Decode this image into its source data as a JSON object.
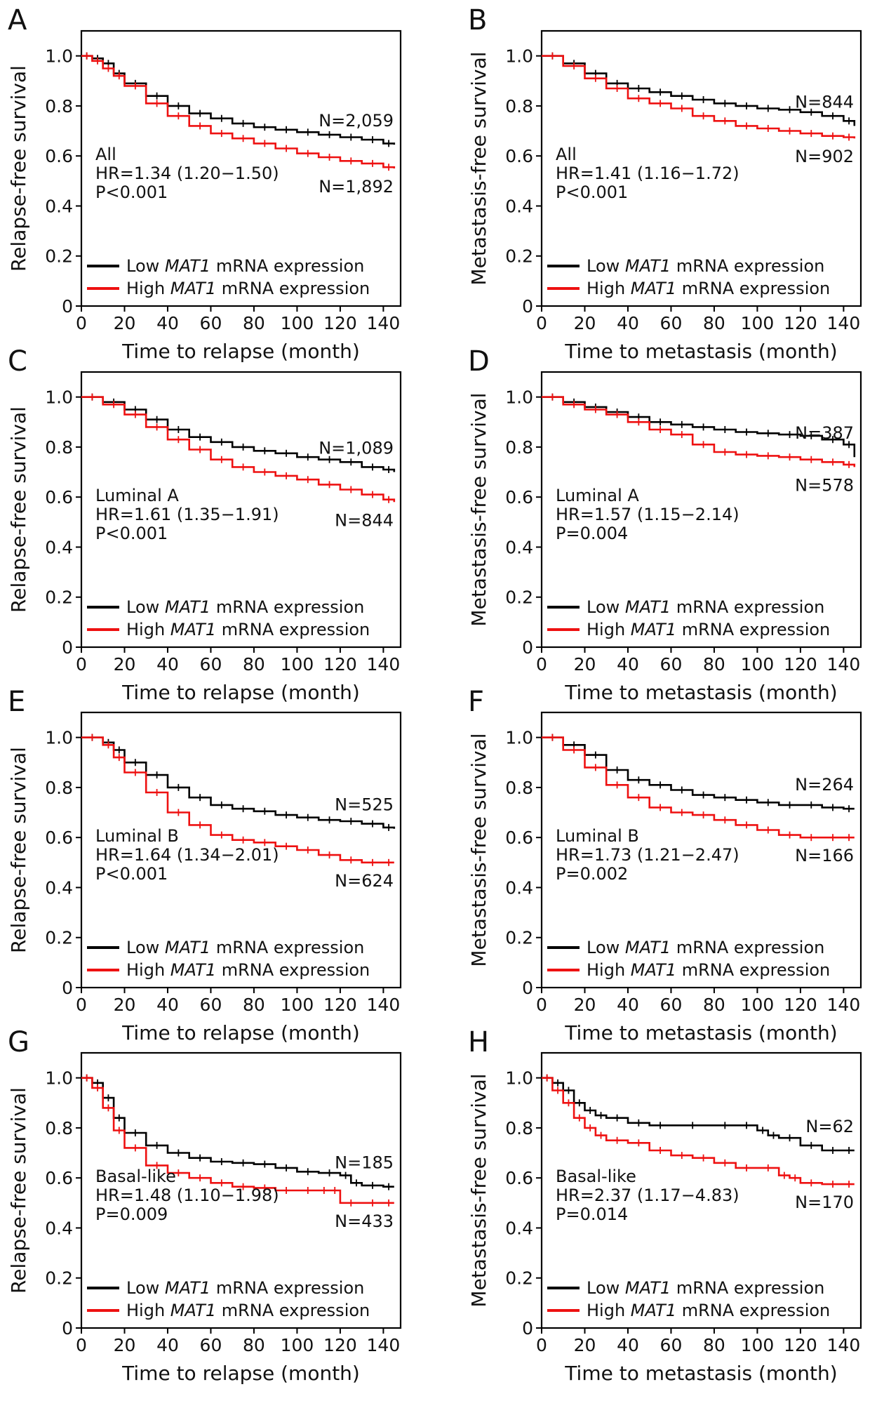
{
  "figure": {
    "colors": {
      "low": "#000000",
      "high": "#ee1111"
    },
    "legend_placement": "bottom-left",
    "grid": false
  },
  "chart_data": [
    {
      "panel": "A",
      "type": "line",
      "xlabel": "Time to relapse (month)",
      "ylabel": "Relapse-free survival",
      "xlim": [
        0,
        148
      ],
      "ylim": [
        0,
        1.1
      ],
      "xticks": [
        "0",
        "20",
        "40",
        "60",
        "80",
        "100",
        "120",
        "140"
      ],
      "yticks": [
        "0",
        "0.2",
        "0.4",
        "0.6",
        "0.8",
        "1.0"
      ],
      "subset": "All",
      "hr": "HR=1.34 (1.20−1.50)",
      "p": "P<0.001",
      "legend": {
        "low_pre": "Low ",
        "high_pre": "High ",
        "gene": "MAT1",
        "post": " mRNA expression"
      },
      "series": [
        {
          "name": "Low MAT1 mRNA expression",
          "color": "#000000",
          "n_label": "N=2,059",
          "x": [
            0,
            5,
            10,
            15,
            20,
            30,
            40,
            50,
            60,
            70,
            80,
            90,
            100,
            110,
            120,
            130,
            140,
            145
          ],
          "y": [
            1.0,
            0.99,
            0.97,
            0.93,
            0.89,
            0.84,
            0.8,
            0.77,
            0.75,
            0.73,
            0.715,
            0.705,
            0.695,
            0.685,
            0.675,
            0.665,
            0.65,
            0.645
          ]
        },
        {
          "name": "High MAT1 mRNA expression",
          "color": "#ee1111",
          "n_label": "N=1,892",
          "x": [
            0,
            5,
            10,
            15,
            20,
            30,
            40,
            50,
            60,
            70,
            80,
            90,
            100,
            110,
            120,
            130,
            140,
            145
          ],
          "y": [
            1.0,
            0.98,
            0.95,
            0.92,
            0.88,
            0.81,
            0.76,
            0.72,
            0.69,
            0.67,
            0.65,
            0.63,
            0.61,
            0.595,
            0.58,
            0.57,
            0.555,
            0.55
          ]
        }
      ]
    },
    {
      "panel": "B",
      "type": "line",
      "xlabel": "Time to metastasis (month)",
      "ylabel": "Metastasis-free survival",
      "xlim": [
        0,
        148
      ],
      "ylim": [
        0,
        1.1
      ],
      "xticks": [
        "0",
        "20",
        "40",
        "60",
        "80",
        "100",
        "120",
        "140"
      ],
      "yticks": [
        "0",
        "0.2",
        "0.4",
        "0.6",
        "0.8",
        "1.0"
      ],
      "subset": "All",
      "hr": "HR=1.41 (1.16−1.72)",
      "p": "P<0.001",
      "legend": {
        "low_pre": "Low ",
        "high_pre": "High ",
        "gene": "MAT1",
        "post": " mRNA expression"
      },
      "series": [
        {
          "name": "Low MAT1 mRNA expression",
          "color": "#000000",
          "n_label": "N=844",
          "x": [
            0,
            10,
            20,
            30,
            40,
            50,
            60,
            70,
            80,
            90,
            100,
            110,
            120,
            130,
            140,
            145
          ],
          "y": [
            1.0,
            0.97,
            0.93,
            0.89,
            0.87,
            0.855,
            0.84,
            0.825,
            0.81,
            0.8,
            0.79,
            0.785,
            0.775,
            0.76,
            0.74,
            0.72
          ]
        },
        {
          "name": "High MAT1 mRNA expression",
          "color": "#ee1111",
          "n_label": "N=902",
          "x": [
            0,
            10,
            20,
            30,
            40,
            50,
            60,
            70,
            80,
            90,
            100,
            110,
            120,
            130,
            140,
            145
          ],
          "y": [
            1.0,
            0.96,
            0.91,
            0.87,
            0.83,
            0.81,
            0.79,
            0.76,
            0.74,
            0.72,
            0.71,
            0.7,
            0.69,
            0.68,
            0.675,
            0.67
          ]
        }
      ]
    },
    {
      "panel": "C",
      "type": "line",
      "xlabel": "Time to relapse (month)",
      "ylabel": "Relapse-free survival",
      "xlim": [
        0,
        148
      ],
      "ylim": [
        0,
        1.1
      ],
      "xticks": [
        "0",
        "20",
        "40",
        "60",
        "80",
        "100",
        "120",
        "140"
      ],
      "yticks": [
        "0",
        "0.2",
        "0.4",
        "0.6",
        "0.8",
        "1.0"
      ],
      "subset": "Luminal A",
      "hr": "HR=1.61 (1.35−1.91)",
      "p": "P<0.001",
      "legend": {
        "low_pre": "Low ",
        "high_pre": "High ",
        "gene": "MAT1",
        "post": " mRNA expression"
      },
      "series": [
        {
          "name": "Low MAT1 mRNA expression",
          "color": "#000000",
          "n_label": "N=1,089",
          "x": [
            0,
            10,
            20,
            30,
            40,
            50,
            60,
            70,
            80,
            90,
            100,
            110,
            120,
            130,
            140,
            145
          ],
          "y": [
            1.0,
            0.98,
            0.95,
            0.91,
            0.87,
            0.84,
            0.82,
            0.8,
            0.785,
            0.775,
            0.76,
            0.75,
            0.74,
            0.72,
            0.71,
            0.7
          ]
        },
        {
          "name": "High MAT1 mRNA expression",
          "color": "#ee1111",
          "n_label": "N=844",
          "x": [
            0,
            10,
            20,
            30,
            40,
            50,
            60,
            70,
            80,
            90,
            100,
            110,
            120,
            130,
            140,
            145
          ],
          "y": [
            1.0,
            0.97,
            0.93,
            0.88,
            0.83,
            0.79,
            0.75,
            0.72,
            0.7,
            0.685,
            0.67,
            0.65,
            0.63,
            0.61,
            0.59,
            0.58
          ]
        }
      ]
    },
    {
      "panel": "D",
      "type": "line",
      "xlabel": "Time to metastasis (month)",
      "ylabel": "Metastasis-free survival",
      "xlim": [
        0,
        148
      ],
      "ylim": [
        0,
        1.1
      ],
      "xticks": [
        "0",
        "20",
        "40",
        "60",
        "80",
        "100",
        "120",
        "140"
      ],
      "yticks": [
        "0",
        "0.2",
        "0.4",
        "0.6",
        "0.8",
        "1.0"
      ],
      "subset": "Luminal A",
      "hr": "HR=1.57 (1.15−2.14)",
      "p": "P=0.004",
      "legend": {
        "low_pre": "Low ",
        "high_pre": "High ",
        "gene": "MAT1",
        "post": " mRNA expression"
      },
      "series": [
        {
          "name": "Low MAT1 mRNA expression",
          "color": "#000000",
          "n_label": "N=387",
          "x": [
            0,
            10,
            20,
            30,
            40,
            50,
            60,
            70,
            80,
            90,
            100,
            110,
            120,
            130,
            140,
            145
          ],
          "y": [
            1.0,
            0.98,
            0.96,
            0.94,
            0.92,
            0.9,
            0.89,
            0.88,
            0.87,
            0.86,
            0.855,
            0.85,
            0.845,
            0.83,
            0.81,
            0.76
          ]
        },
        {
          "name": "High MAT1 mRNA expression",
          "color": "#ee1111",
          "n_label": "N=578",
          "x": [
            0,
            10,
            20,
            30,
            40,
            50,
            60,
            70,
            80,
            90,
            100,
            110,
            120,
            130,
            140,
            145
          ],
          "y": [
            1.0,
            0.97,
            0.95,
            0.93,
            0.9,
            0.87,
            0.85,
            0.81,
            0.78,
            0.77,
            0.765,
            0.76,
            0.75,
            0.74,
            0.73,
            0.72
          ]
        }
      ]
    },
    {
      "panel": "E",
      "type": "line",
      "xlabel": "Time to relapse (month)",
      "ylabel": "Relapse-free survival",
      "xlim": [
        0,
        148
      ],
      "ylim": [
        0,
        1.1
      ],
      "xticks": [
        "0",
        "20",
        "40",
        "60",
        "80",
        "100",
        "120",
        "140"
      ],
      "yticks": [
        "0",
        "0.2",
        "0.4",
        "0.6",
        "0.8",
        "1.0"
      ],
      "subset": "Luminal B",
      "hr": "HR=1.64 (1.34−2.01)",
      "p": "P<0.001",
      "legend": {
        "low_pre": "Low ",
        "high_pre": "High ",
        "gene": "MAT1",
        "post": " mRNA expression"
      },
      "series": [
        {
          "name": "Low MAT1 mRNA expression",
          "color": "#000000",
          "n_label": "N=525",
          "x": [
            0,
            10,
            15,
            20,
            30,
            40,
            50,
            60,
            70,
            80,
            90,
            100,
            110,
            120,
            130,
            140,
            145
          ],
          "y": [
            1.0,
            0.98,
            0.95,
            0.9,
            0.85,
            0.8,
            0.76,
            0.73,
            0.715,
            0.705,
            0.69,
            0.68,
            0.67,
            0.665,
            0.655,
            0.64,
            0.635
          ]
        },
        {
          "name": "High MAT1 mRNA expression",
          "color": "#ee1111",
          "n_label": "N=624",
          "x": [
            0,
            10,
            15,
            20,
            30,
            40,
            50,
            60,
            70,
            80,
            90,
            100,
            110,
            120,
            130,
            140,
            145
          ],
          "y": [
            1.0,
            0.97,
            0.92,
            0.86,
            0.78,
            0.7,
            0.65,
            0.61,
            0.59,
            0.58,
            0.565,
            0.55,
            0.53,
            0.51,
            0.5,
            0.5,
            0.5
          ]
        }
      ]
    },
    {
      "panel": "F",
      "type": "line",
      "xlabel": "Time to metastasis (month)",
      "ylabel": "Metastasis-free survival",
      "xlim": [
        0,
        148
      ],
      "ylim": [
        0,
        1.1
      ],
      "xticks": [
        "0",
        "20",
        "40",
        "60",
        "80",
        "100",
        "120",
        "140"
      ],
      "yticks": [
        "0",
        "0.2",
        "0.4",
        "0.6",
        "0.8",
        "1.0"
      ],
      "subset": "Luminal B",
      "hr": "HR=1.73 (1.21−2.47)",
      "p": "P=0.002",
      "legend": {
        "low_pre": "Low ",
        "high_pre": "High ",
        "gene": "MAT1",
        "post": " mRNA expression"
      },
      "series": [
        {
          "name": "Low MAT1 mRNA expression",
          "color": "#000000",
          "n_label": "N=264",
          "x": [
            0,
            10,
            20,
            30,
            40,
            50,
            60,
            70,
            80,
            90,
            100,
            110,
            120,
            130,
            140,
            145
          ],
          "y": [
            1.0,
            0.97,
            0.93,
            0.87,
            0.83,
            0.81,
            0.79,
            0.77,
            0.76,
            0.75,
            0.74,
            0.73,
            0.73,
            0.72,
            0.715,
            0.715
          ]
        },
        {
          "name": "High MAT1 mRNA expression",
          "color": "#ee1111",
          "n_label": "N=166",
          "x": [
            0,
            10,
            20,
            30,
            40,
            50,
            60,
            70,
            80,
            90,
            100,
            110,
            120,
            130,
            140,
            145
          ],
          "y": [
            1.0,
            0.95,
            0.88,
            0.81,
            0.76,
            0.72,
            0.7,
            0.69,
            0.67,
            0.65,
            0.63,
            0.61,
            0.6,
            0.6,
            0.6,
            0.6
          ]
        }
      ]
    },
    {
      "panel": "G",
      "type": "line",
      "xlabel": "Time to relapse (month)",
      "ylabel": "Relapse-free survival",
      "xlim": [
        0,
        148
      ],
      "ylim": [
        0,
        1.1
      ],
      "xticks": [
        "0",
        "20",
        "40",
        "60",
        "80",
        "100",
        "120",
        "140"
      ],
      "yticks": [
        "0",
        "0.2",
        "0.4",
        "0.6",
        "0.8",
        "1.0"
      ],
      "subset": "Basal-like",
      "hr": "HR=1.48 (1.10−1.98)",
      "p": "P=0.009",
      "legend": {
        "low_pre": "Low ",
        "high_pre": "High ",
        "gene": "MAT1",
        "post": " mRNA expression"
      },
      "series": [
        {
          "name": "Low MAT1 mRNA expression",
          "color": "#000000",
          "n_label": "N=185",
          "x": [
            0,
            5,
            10,
            15,
            20,
            30,
            40,
            50,
            60,
            70,
            80,
            90,
            100,
            110,
            120,
            125,
            130,
            140,
            145
          ],
          "y": [
            1.0,
            0.98,
            0.92,
            0.84,
            0.78,
            0.73,
            0.7,
            0.68,
            0.665,
            0.66,
            0.655,
            0.64,
            0.625,
            0.62,
            0.61,
            0.58,
            0.57,
            0.565,
            0.565
          ]
        },
        {
          "name": "High MAT1 mRNA expression",
          "color": "#ee1111",
          "n_label": "N=433",
          "x": [
            0,
            5,
            10,
            15,
            20,
            30,
            40,
            50,
            60,
            70,
            80,
            90,
            100,
            110,
            115,
            120,
            130,
            140,
            145
          ],
          "y": [
            1.0,
            0.96,
            0.88,
            0.79,
            0.72,
            0.65,
            0.62,
            0.6,
            0.58,
            0.565,
            0.56,
            0.55,
            0.55,
            0.55,
            0.55,
            0.5,
            0.5,
            0.5,
            0.5
          ]
        }
      ]
    },
    {
      "panel": "H",
      "type": "line",
      "xlabel": "Time to metastasis (month)",
      "ylabel": "Metastasis-free survival",
      "xlim": [
        0,
        148
      ],
      "ylim": [
        0,
        1.1
      ],
      "xticks": [
        "0",
        "20",
        "40",
        "60",
        "80",
        "100",
        "120",
        "140"
      ],
      "yticks": [
        "0",
        "0.2",
        "0.4",
        "0.6",
        "0.8",
        "1.0"
      ],
      "subset": "Basal-like",
      "hr": "HR=2.37 (1.17−4.83)",
      "p": "P=0.014",
      "legend": {
        "low_pre": "Low ",
        "high_pre": "High ",
        "gene": "MAT1",
        "post": " mRNA expression"
      },
      "series": [
        {
          "name": "Low MAT1 mRNA expression",
          "color": "#000000",
          "n_label": "N=62",
          "x": [
            0,
            5,
            10,
            15,
            20,
            25,
            30,
            40,
            50,
            60,
            80,
            90,
            100,
            105,
            110,
            120,
            130,
            140,
            145
          ],
          "y": [
            1.0,
            0.98,
            0.95,
            0.9,
            0.87,
            0.85,
            0.84,
            0.82,
            0.81,
            0.81,
            0.81,
            0.81,
            0.79,
            0.77,
            0.76,
            0.73,
            0.71,
            0.71,
            0.71
          ]
        },
        {
          "name": "High MAT1 mRNA expression",
          "color": "#ee1111",
          "n_label": "N=170",
          "x": [
            0,
            5,
            10,
            15,
            20,
            25,
            30,
            40,
            50,
            60,
            70,
            80,
            90,
            100,
            110,
            115,
            120,
            130,
            140,
            145
          ],
          "y": [
            1.0,
            0.95,
            0.9,
            0.84,
            0.8,
            0.77,
            0.75,
            0.74,
            0.71,
            0.69,
            0.68,
            0.66,
            0.64,
            0.64,
            0.61,
            0.6,
            0.58,
            0.575,
            0.575,
            0.575
          ]
        }
      ]
    }
  ]
}
